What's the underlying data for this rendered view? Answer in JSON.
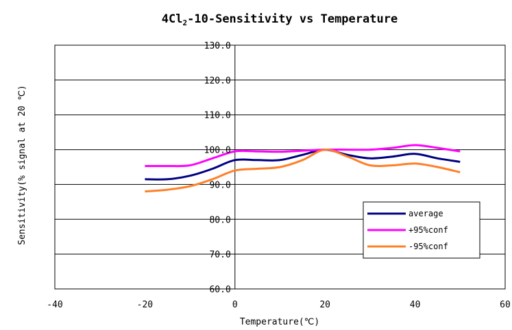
{
  "chart_data": {
    "type": "line",
    "title_parts": [
      "4Cl",
      "2",
      "-10-Sensitivity vs Temperature"
    ],
    "xlabel": "Temperature(℃)",
    "ylabel": "Sensitivity(% signal at 20 ℃)",
    "xlim": [
      -40,
      60
    ],
    "ylim": [
      60,
      130
    ],
    "x_ticks": [
      "-40",
      "-20",
      "0",
      "20",
      "40",
      "60"
    ],
    "y_ticks": [
      "60.0",
      "70.0",
      "80.0",
      "90.0",
      "100.0",
      "110.0",
      "120.0",
      "130.0"
    ],
    "x": [
      -20,
      -15,
      -10,
      -5,
      0,
      5,
      10,
      15,
      20,
      25,
      30,
      35,
      40,
      45,
      50
    ],
    "series": [
      {
        "name": "average",
        "color": "#000080",
        "values": [
          91.5,
          91.5,
          92.5,
          94.5,
          97.0,
          97.0,
          97.0,
          98.5,
          100.0,
          98.5,
          97.5,
          98.0,
          98.8,
          97.5,
          96.5
        ]
      },
      {
        "name": "+95%conf",
        "color": "#ff00ff",
        "values": [
          95.3,
          95.3,
          95.5,
          97.5,
          99.5,
          99.5,
          99.4,
          99.7,
          100.0,
          100.0,
          100.0,
          100.5,
          101.3,
          100.5,
          99.5
        ]
      },
      {
        "name": "-95%conf",
        "color": "#ff7f27",
        "values": [
          88.0,
          88.5,
          89.5,
          91.5,
          94.0,
          94.5,
          95.0,
          97.0,
          100.0,
          98.0,
          95.5,
          95.5,
          96.0,
          95.0,
          93.5
        ]
      }
    ],
    "grid": "horizontal",
    "legend_position": "bottom-right"
  }
}
